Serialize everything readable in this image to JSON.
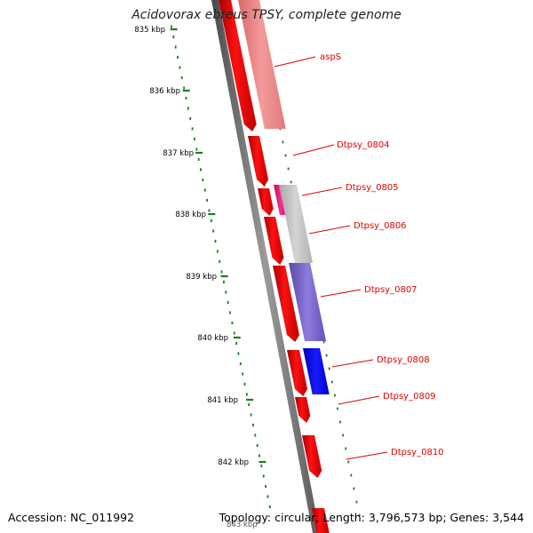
{
  "title": "Acidovorax ebreus TPSY, complete genome",
  "footer": {
    "accession": "Accession: NC_011992",
    "summary": "Topology: circular; Length: 3,796,573 bp; Genes: 3,544"
  },
  "scale": {
    "ticks": [
      "835 kbp",
      "836 kbp",
      "837 kbp",
      "838 kbp",
      "839 kbp",
      "840 kbp",
      "841 kbp",
      "842 kbp"
    ],
    "cutoff_tick": "843 kbp"
  },
  "genes": {
    "labels": [
      "aspS",
      "Dtpsy_0804",
      "Dtpsy_0805",
      "Dtpsy_0806",
      "Dtpsy_0807",
      "Dtpsy_0808",
      "Dtpsy_0809",
      "Dtpsy_0810"
    ]
  },
  "colors": {
    "forward_strand": "#ff0000",
    "label": "#e00000",
    "tick": "#1e7d1e",
    "backbone": "#777777",
    "aspS_feature": "#f07f7f",
    "Dtpsy_0805_feature": "#e8157a",
    "Dtpsy_0806_feature": "#bdbdbd",
    "Dtpsy_0807_feature": "#7b68c8",
    "Dtpsy_0808_feature": "#0a0aee"
  }
}
